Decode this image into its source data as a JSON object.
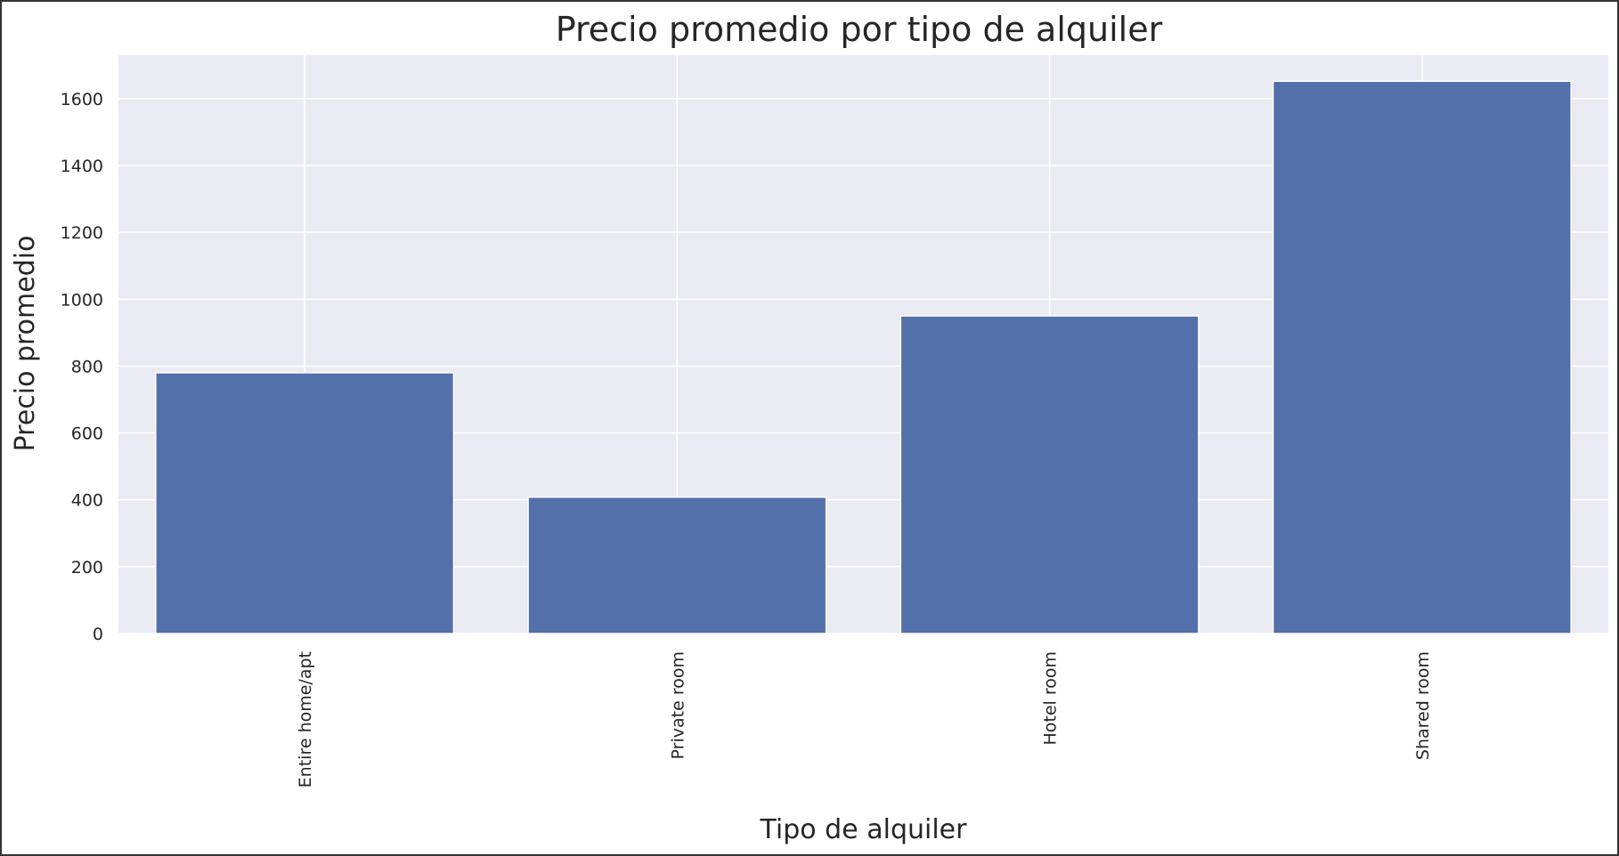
{
  "chart_data": {
    "type": "bar",
    "title": "Precio promedio por tipo de alquiler",
    "xlabel": "Tipo de alquiler",
    "ylabel": "Precio promedio",
    "categories": [
      "Entire home/apt",
      "Private room",
      "Hotel room",
      "Shared room"
    ],
    "values": [
      780,
      408,
      950,
      1652
    ],
    "ylim": [
      0,
      1730
    ],
    "yticks": [
      0,
      200,
      400,
      600,
      800,
      1000,
      1200,
      1400,
      1600
    ],
    "grid": true,
    "bar_color": "#5470ab",
    "plot_background": "#eaeaf2",
    "grid_color": "#ffffff"
  }
}
